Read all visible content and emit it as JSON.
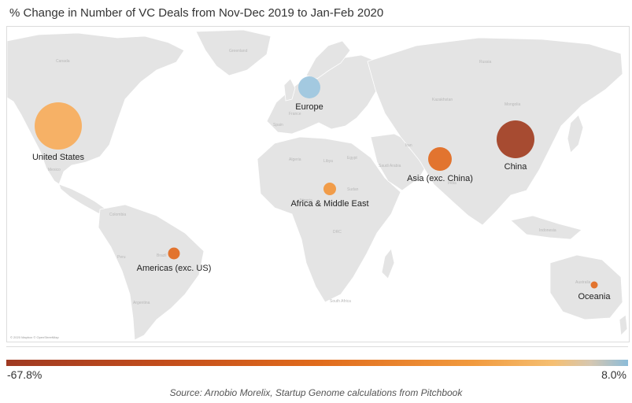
{
  "title": "% Change in Number of VC Deals from Nov-Dec 2019 to Jan-Feb 2020",
  "map": {
    "attribution": "© 2020 Mapbox © OpenStreetMap",
    "geo_labels": [
      "Canada",
      "Greenland",
      "Mexico",
      "Brazil",
      "Peru",
      "Colombia",
      "Argentina",
      "Algeria",
      "Libya",
      "Egypt",
      "Sudan",
      "Nigeria",
      "DRC",
      "South Africa",
      "Saudi Arabia",
      "Iran",
      "Kazakhstan",
      "Mongolia",
      "Russia",
      "India",
      "Indonesia",
      "Australia",
      "France",
      "Spain"
    ],
    "regions": [
      {
        "label": "United States",
        "color": "#f7ad5b",
        "size": 60,
        "icon": "bubble-marker"
      },
      {
        "label": "Europe",
        "color": "#9dc7e0",
        "size": 28,
        "icon": "bubble-marker"
      },
      {
        "label": "China",
        "color": "#a23e22",
        "size": 48,
        "icon": "bubble-marker"
      },
      {
        "label": "Asia (exc. China)",
        "color": "#e26a1f",
        "size": 30,
        "icon": "bubble-marker"
      },
      {
        "label": "Africa & Middle East",
        "color": "#f2963c",
        "size": 16,
        "icon": "bubble-marker"
      },
      {
        "label": "Americas (exc. US)",
        "color": "#e26a1f",
        "size": 15,
        "icon": "bubble-marker"
      },
      {
        "label": "Oceania",
        "color": "#e26a1f",
        "size": 9,
        "icon": "bubble-marker"
      }
    ]
  },
  "legend": {
    "min_label": "-67.8%",
    "max_label": "8.0%",
    "min_color": "#9f3a22",
    "max_color": "#8cbcd9"
  },
  "source": "Source: Arnobio Morelix, Startup Genome calculations from Pitchbook"
}
